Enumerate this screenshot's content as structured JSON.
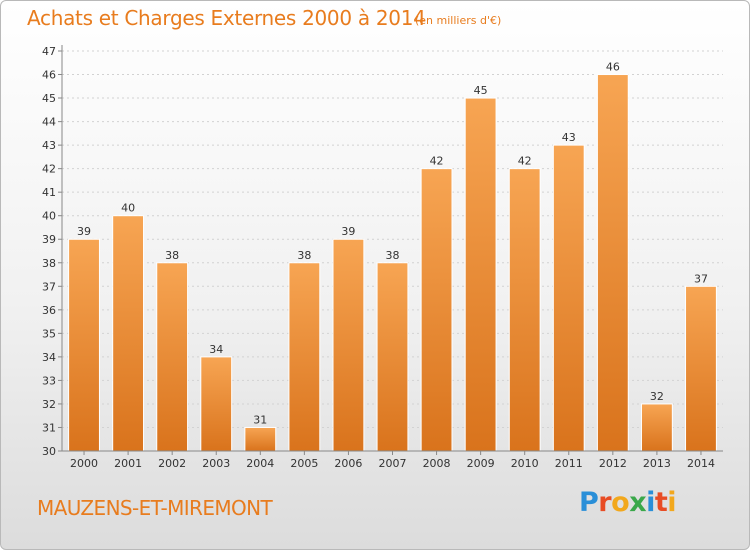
{
  "title": "Achats et Charges Externes 2000 à 2014",
  "unit_note": "(en milliers d'€)",
  "commune": "MAUZENS-ET-MIREMONT",
  "logo": {
    "letters": [
      {
        "char": "P",
        "color": "#2a8fd8"
      },
      {
        "char": "r",
        "color": "#e84c24"
      },
      {
        "char": "o",
        "color": "#f2a81d"
      },
      {
        "char": "x",
        "color": "#3aa84a"
      },
      {
        "char": "i",
        "color": "#2a8fd8"
      },
      {
        "char": "t",
        "color": "#e84c24"
      },
      {
        "char": "i",
        "color": "#f2a81d"
      }
    ]
  },
  "chart_data": {
    "type": "bar",
    "title": "Achats et Charges Externes 2000 à 2014",
    "xlabel": "",
    "ylabel": "",
    "categories": [
      "2000",
      "2001",
      "2002",
      "2003",
      "2004",
      "2005",
      "2006",
      "2007",
      "2008",
      "2009",
      "2010",
      "2011",
      "2012",
      "2013",
      "2014"
    ],
    "values": [
      39,
      40,
      38,
      34,
      31,
      38,
      39,
      38,
      42,
      45,
      42,
      43,
      46,
      32,
      37
    ],
    "ylim": [
      30,
      47
    ],
    "yticks": [
      30,
      31,
      32,
      33,
      34,
      35,
      36,
      37,
      38,
      39,
      40,
      41,
      42,
      43,
      44,
      45,
      46,
      47
    ],
    "grid": true,
    "bar_color_top": "#f7a553",
    "bar_color_bottom": "#d9731c",
    "axis_text_color": "#333333"
  }
}
